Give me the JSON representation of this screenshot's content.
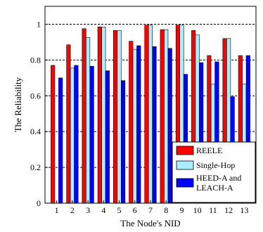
{
  "chart_data": {
    "type": "bar",
    "xlabel": "The Node's NID",
    "ylabel": "The Reliability",
    "categories": [
      "1",
      "2",
      "3",
      "4",
      "5",
      "6",
      "7",
      "8",
      "9",
      "10",
      "11",
      "12",
      "13"
    ],
    "ylim": [
      0,
      1.1
    ],
    "yticks": [
      "0",
      "0.2",
      "0.4",
      "0.6",
      "0.8",
      "1"
    ],
    "grid": "horizontal dashed at 0.2, 0.4, 0.6, 0.8, 1",
    "legend_position": "bottom-right",
    "series": [
      {
        "name": "REELE",
        "color": "#ff0000",
        "values": [
          0.77,
          0.885,
          0.975,
          0.985,
          0.965,
          0.905,
          0.995,
          0.97,
          0.995,
          0.965,
          0.825,
          0.92,
          0.825
        ]
      },
      {
        "name": "Single-Hop",
        "color": "#aaeeff",
        "values": [
          0.0,
          0.755,
          0.925,
          0.985,
          0.965,
          0.86,
          0.995,
          0.97,
          0.995,
          0.94,
          0.665,
          0.92,
          0.665
        ]
      },
      {
        "name": "HEED-A and LEACH-A",
        "color": "#0000ff",
        "values": [
          0.7,
          0.77,
          0.765,
          0.74,
          0.685,
          0.88,
          0.875,
          0.865,
          0.72,
          0.785,
          0.79,
          0.595,
          0.825
        ]
      }
    ]
  }
}
